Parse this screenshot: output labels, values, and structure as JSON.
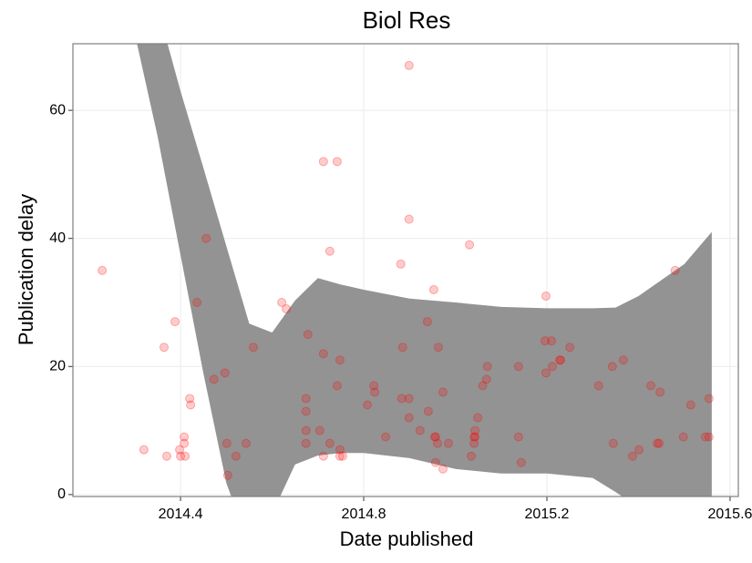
{
  "chart_data": {
    "type": "scatter",
    "title": "Biol Res",
    "x_label": "Date published",
    "y_label": "Publication delay",
    "x": [
      2014.229,
      2014.32,
      2014.364,
      2014.37,
      2014.388,
      2014.398,
      2014.4,
      2014.408,
      2014.408,
      2014.41,
      2014.42,
      2014.422,
      2014.436,
      2014.456,
      2014.473,
      2014.497,
      2014.501,
      2014.503,
      2014.521,
      2014.543,
      2014.559,
      2014.621,
      2014.631,
      2014.674,
      2014.674,
      2014.674,
      2014.674,
      2014.678,
      2014.704,
      2014.712,
      2014.712,
      2014.712,
      2014.726,
      2014.726,
      2014.742,
      2014.742,
      2014.748,
      2014.748,
      2014.748,
      2014.754,
      2014.808,
      2014.822,
      2014.824,
      2014.848,
      2014.881,
      2014.883,
      2014.885,
      2014.899,
      2014.899,
      2014.899,
      2014.899,
      2014.923,
      2014.939,
      2014.941,
      2014.953,
      2014.955,
      2014.957,
      2014.957,
      2014.961,
      2014.963,
      2014.973,
      2014.973,
      2014.985,
      2015.031,
      2015.035,
      2015.041,
      2015.041,
      2015.043,
      2015.043,
      2015.049,
      2015.06,
      2015.068,
      2015.07,
      2015.138,
      2015.138,
      2015.144,
      2015.198,
      2015.196,
      2015.198,
      2015.21,
      2015.212,
      2015.228,
      2015.23,
      2015.25,
      2015.313,
      2015.343,
      2015.345,
      2015.367,
      2015.387,
      2015.401,
      2015.427,
      2015.441,
      2015.445,
      2015.447,
      2015.48,
      2015.498,
      2015.514,
      2015.546,
      2015.554,
      2015.554
    ],
    "values": [
      35,
      7,
      23,
      6,
      27,
      7,
      6,
      9,
      8,
      6,
      15,
      14,
      30,
      40,
      18,
      19,
      8,
      3,
      6,
      8,
      23,
      30,
      29,
      15,
      13,
      10,
      8,
      25,
      10,
      52,
      22,
      6,
      8,
      38,
      52,
      17,
      21,
      7,
      6,
      6,
      14,
      17,
      16,
      9,
      36,
      15,
      23,
      67,
      43,
      15,
      12,
      10,
      27,
      13,
      32,
      9,
      9,
      5,
      8,
      23,
      4,
      16,
      8,
      39,
      6,
      9,
      8,
      10,
      9,
      12,
      17,
      18,
      20,
      20,
      9,
      5,
      31,
      24,
      19,
      24,
      20,
      21,
      21,
      23,
      17,
      20,
      8,
      21,
      6,
      7,
      17,
      8,
      8,
      16,
      35,
      9,
      14,
      9,
      9,
      15
    ],
    "color": "#ff0000",
    "point_alpha": 0.2,
    "band": {
      "x": [
        2014.3,
        2014.35,
        2014.4,
        2014.45,
        2014.5,
        2014.55,
        2014.6,
        2014.65,
        2014.7,
        2014.75,
        2014.8,
        2014.9,
        2015.0,
        2015.1,
        2015.2,
        2015.3,
        2015.35,
        2015.4,
        2015.5,
        2015.56
      ],
      "upper": [
        95,
        76,
        63,
        51,
        38.8,
        26.7,
        25.3,
        30.3,
        33.8,
        32.8,
        32,
        30.6,
        30,
        29.3,
        29.1,
        29.1,
        29.2,
        31,
        36,
        41
      ],
      "lower": [
        72,
        55.9,
        37.4,
        18.9,
        1.8,
        -8,
        -3,
        4.7,
        6.1,
        6.5,
        6.5,
        5.7,
        4,
        3.3,
        3.3,
        2.6,
        0.4,
        -2,
        -3,
        -2
      ],
      "color": "#939393"
    },
    "xlim": [
      2014.165,
      2015.618
    ],
    "xticks": [
      2014.4,
      2014.8,
      2015.2,
      2015.6
    ],
    "ylim": [
      -0.3,
      70.4
    ],
    "yticks": [
      0,
      20,
      40,
      60
    ],
    "grid": true
  }
}
